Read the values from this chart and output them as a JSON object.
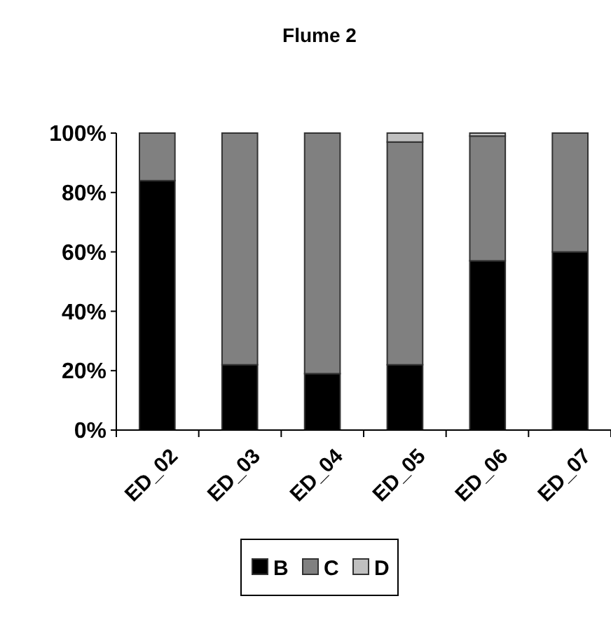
{
  "chart_data": {
    "type": "bar",
    "title": "Flume 2",
    "stacked": true,
    "categories": [
      "ED_02",
      "ED_03",
      "ED_04",
      "ED_05",
      "ED_06",
      "ED_07"
    ],
    "series": [
      {
        "name": "B",
        "color": "#000000",
        "values": [
          84,
          22,
          19,
          22,
          57,
          60
        ]
      },
      {
        "name": "C",
        "color": "#808080",
        "values": [
          16,
          78,
          81,
          75,
          42,
          40
        ]
      },
      {
        "name": "D",
        "color": "#c0c0c0",
        "values": [
          0,
          0,
          0,
          3,
          1,
          0
        ]
      }
    ],
    "ylim": [
      0,
      100
    ],
    "yticks": [
      {
        "value": 0,
        "label": "0%"
      },
      {
        "value": 20,
        "label": "20%"
      },
      {
        "value": 40,
        "label": "40%"
      },
      {
        "value": 60,
        "label": "60%"
      },
      {
        "value": 80,
        "label": "80%"
      },
      {
        "value": 100,
        "label": "100%"
      }
    ],
    "grid": false,
    "legend": "bottom"
  }
}
